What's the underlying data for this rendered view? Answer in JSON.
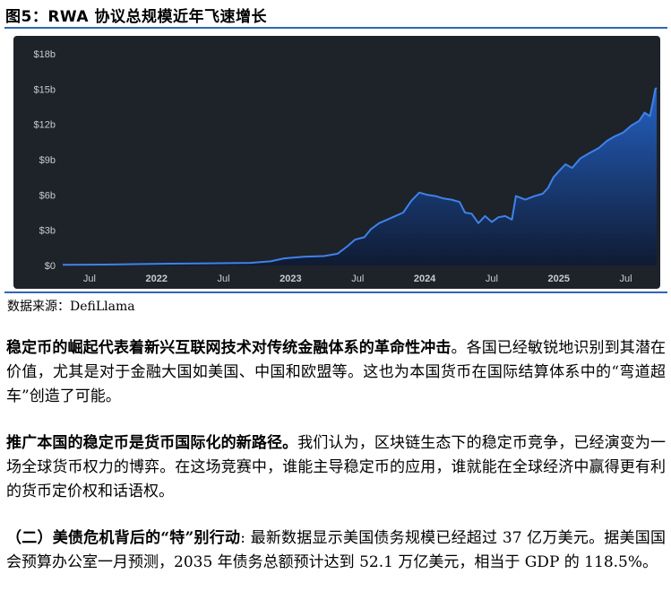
{
  "figure": {
    "title": "图5：RWA 协议总规模近年飞速增长",
    "source": "数据来源：DefiLlama"
  },
  "chart_data": {
    "type": "area",
    "title": "",
    "xlabel": "",
    "ylabel": "",
    "ylim": [
      0,
      18
    ],
    "y_unit": "billion USD",
    "y_ticks": [
      "$0",
      "$3b",
      "$6b",
      "$9b",
      "$12b",
      "$15b",
      "$18b"
    ],
    "x_ticks": [
      {
        "label": "Jul",
        "t": 2021.5
      },
      {
        "label": "2022",
        "t": 2022.0
      },
      {
        "label": "Jul",
        "t": 2022.5
      },
      {
        "label": "2023",
        "t": 2023.0
      },
      {
        "label": "Jul",
        "t": 2023.5
      },
      {
        "label": "2024",
        "t": 2024.0
      },
      {
        "label": "Jul",
        "t": 2024.5
      },
      {
        "label": "2025",
        "t": 2025.0
      },
      {
        "label": "Jul",
        "t": 2025.5
      }
    ],
    "xlim": [
      2021.3,
      2025.73
    ],
    "series": [
      {
        "values": [
          [
            2021.3,
            0.05
          ],
          [
            2021.6,
            0.08
          ],
          [
            2021.9,
            0.12
          ],
          [
            2022.1,
            0.15
          ],
          [
            2022.4,
            0.18
          ],
          [
            2022.7,
            0.22
          ],
          [
            2022.85,
            0.35
          ],
          [
            2022.95,
            0.6
          ],
          [
            2023.1,
            0.75
          ],
          [
            2023.25,
            0.8
          ],
          [
            2023.35,
            1.0
          ],
          [
            2023.42,
            1.6
          ],
          [
            2023.48,
            2.2
          ],
          [
            2023.55,
            2.4
          ],
          [
            2023.6,
            3.1
          ],
          [
            2023.66,
            3.6
          ],
          [
            2023.72,
            3.9
          ],
          [
            2023.78,
            4.2
          ],
          [
            2023.84,
            4.5
          ],
          [
            2023.9,
            5.5
          ],
          [
            2023.96,
            6.2
          ],
          [
            2024.02,
            6.0
          ],
          [
            2024.08,
            5.9
          ],
          [
            2024.14,
            5.7
          ],
          [
            2024.2,
            5.6
          ],
          [
            2024.26,
            5.4
          ],
          [
            2024.3,
            4.5
          ],
          [
            2024.35,
            4.4
          ],
          [
            2024.4,
            3.6
          ],
          [
            2024.45,
            4.2
          ],
          [
            2024.5,
            3.7
          ],
          [
            2024.55,
            4.1
          ],
          [
            2024.6,
            4.2
          ],
          [
            2024.65,
            3.9
          ],
          [
            2024.68,
            5.9
          ],
          [
            2024.75,
            5.6
          ],
          [
            2024.82,
            5.9
          ],
          [
            2024.88,
            6.1
          ],
          [
            2024.92,
            6.6
          ],
          [
            2024.96,
            7.5
          ],
          [
            2025.0,
            8.0
          ],
          [
            2025.05,
            8.6
          ],
          [
            2025.1,
            8.3
          ],
          [
            2025.16,
            9.1
          ],
          [
            2025.22,
            9.5
          ],
          [
            2025.3,
            10.0
          ],
          [
            2025.36,
            10.6
          ],
          [
            2025.42,
            11.0
          ],
          [
            2025.48,
            11.3
          ],
          [
            2025.54,
            11.9
          ],
          [
            2025.6,
            12.3
          ],
          [
            2025.64,
            13.0
          ],
          [
            2025.68,
            12.7
          ],
          [
            2025.7,
            13.8
          ],
          [
            2025.72,
            15.0
          ],
          [
            2025.73,
            15.1
          ]
        ],
        "color": "#2b6fd6"
      }
    ],
    "grid": false,
    "colors": {
      "background": "#1e2229",
      "line": "#3f82ea",
      "fill_top": "#2566cf",
      "fill_bottom": "#0e1a33",
      "tick": "#c8ccd3"
    }
  },
  "paragraphs": {
    "p1_bold": "稳定币的崛起代表着新兴互联网技术对传统金融体系的革命性冲击",
    "p1_rest": "。各国已经敏锐地识别到其潜在价值，尤其是对于金融大国如美国、中国和欧盟等。这也为本国货币在国际结算体系中的“弯道超车”创造了可能。",
    "p2_bold": "推广本国的稳定币是货币国际化的新路径。",
    "p2_rest": "我们认为，区块链生态下的稳定币竞争，已经演变为一场全球货币权力的博弈。在这场竞赛中，谁能主导稳定币的应用，谁就能在全球经济中赢得更有利的货币定价权和话语权。",
    "p3_bold": "（二）美债危机背后的“特”别行动",
    "p3_rest": ": 最新数据显示美国债务规模已经超过 37 亿万美元。据美国国会预算办公室一月预测，2035 年债务总额预计达到 52.1 万亿美元，相当于 GDP 的 118.5%。"
  }
}
